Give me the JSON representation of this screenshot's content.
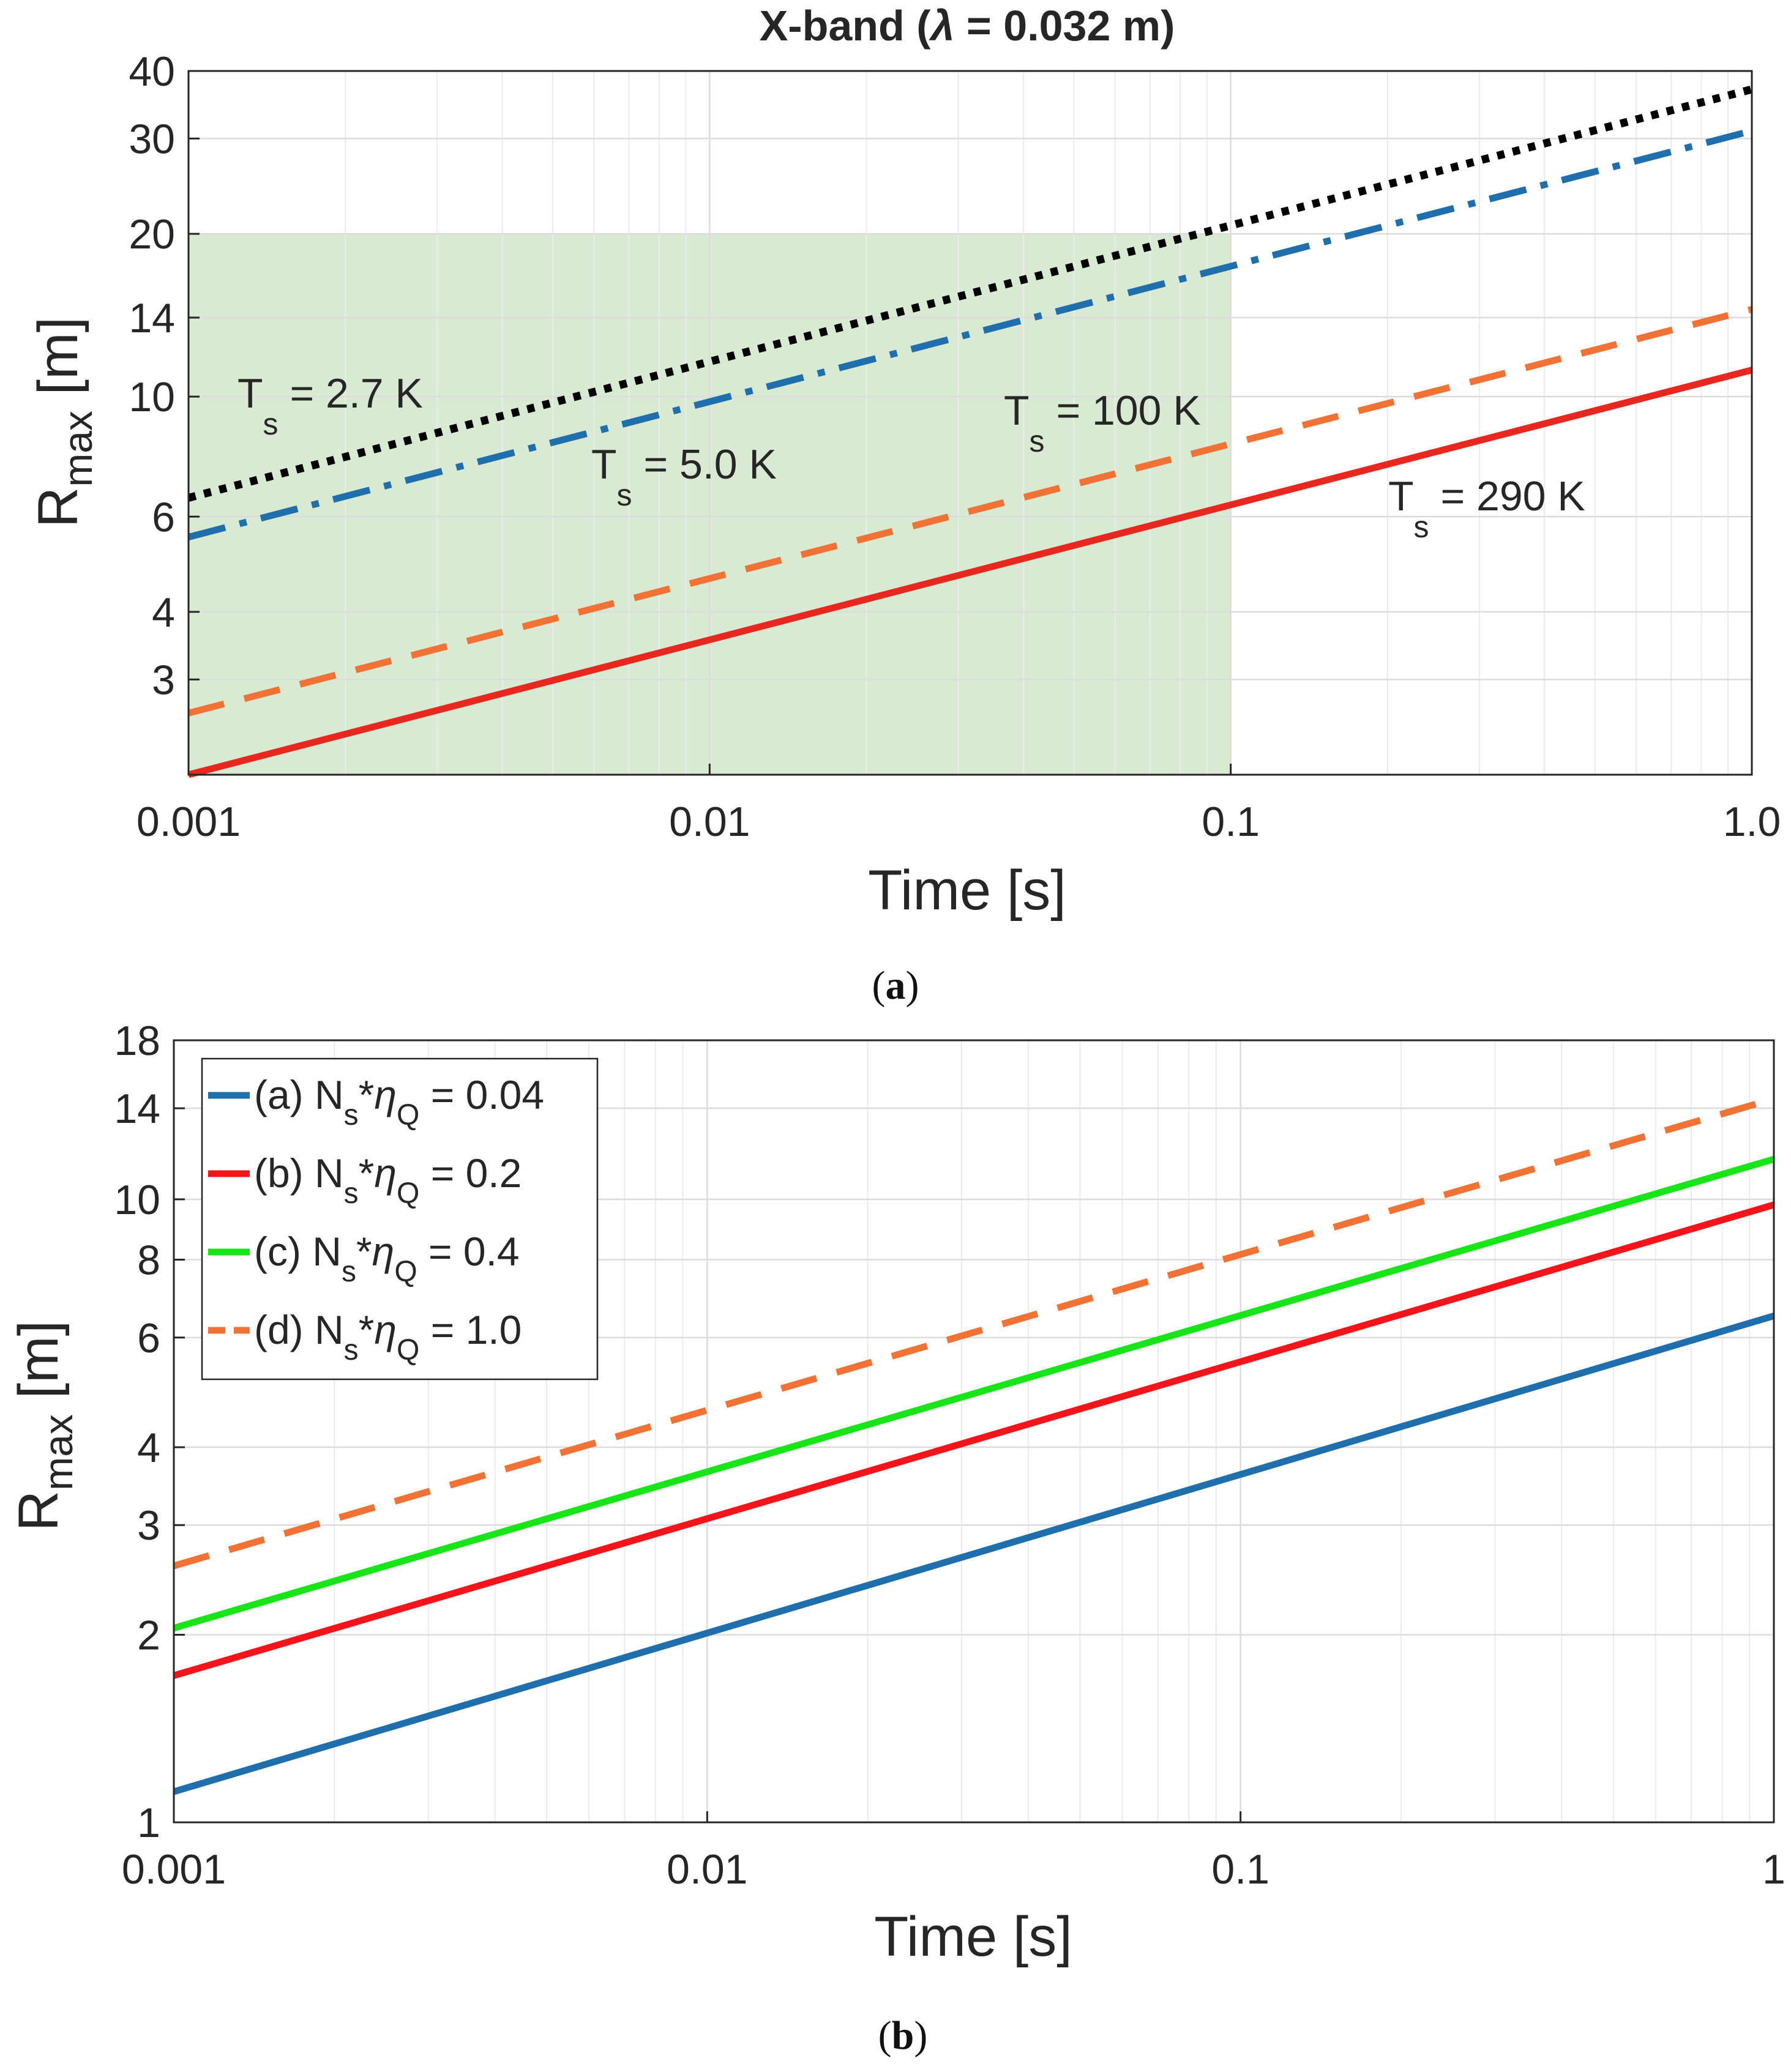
{
  "chart_data": [
    {
      "id": "a",
      "type": "line",
      "title": "X-band (λ = 0.032 m)",
      "title_prefix": "X-band (",
      "title_lambda": "λ",
      "title_suffix": " = 0.032 m)",
      "xlabel": "Time [s]",
      "ylabel_main": "R",
      "ylabel_sub": "max",
      "ylabel_unit": " [m]",
      "xscale": "log",
      "yscale": "log",
      "xlim": [
        0.001,
        1.0
      ],
      "ylim": [
        2.0,
        40
      ],
      "xticks": [
        0.001,
        0.01,
        0.1,
        1.0
      ],
      "xtick_labels": [
        "0.001",
        "0.01",
        "0.1",
        "1.0"
      ],
      "yticks": [
        3,
        4,
        6,
        10,
        14,
        20,
        30,
        40
      ],
      "ytick_labels": [
        "3",
        "4",
        "6",
        "10",
        "14",
        "20",
        "30",
        "40"
      ],
      "grid": true,
      "shaded_region": {
        "x": [
          0.001,
          0.1
        ],
        "y": [
          2.0,
          20
        ],
        "color": "#d9ead3"
      },
      "series": [
        {
          "name": "T_s = 2.7 K",
          "color": "#000000",
          "style": "dotted",
          "x": [
            0.001,
            1.0
          ],
          "values": [
            6.5,
            37
          ]
        },
        {
          "name": "T_s = 5.0 K",
          "color": "#1f6fad",
          "style": "dashdot",
          "x": [
            0.001,
            1.0
          ],
          "values": [
            5.5,
            31
          ]
        },
        {
          "name": "T_s = 100 K",
          "color": "#f07335",
          "style": "dashed",
          "x": [
            0.001,
            1.0
          ],
          "values": [
            2.6,
            14.5
          ]
        },
        {
          "name": "T_s = 290 K",
          "color": "#e8281f",
          "style": "solid",
          "x": [
            0.001,
            1.0
          ],
          "values": [
            2.0,
            11.2
          ]
        }
      ],
      "annotations": [
        {
          "main": "T",
          "sub": "s",
          "rest": " = 2.7 K"
        },
        {
          "main": "T",
          "sub": "s",
          "rest": " = 5.0 K"
        },
        {
          "main": "T",
          "sub": "s",
          "rest": " = 100 K"
        },
        {
          "main": "T",
          "sub": "s",
          "rest": " = 290 K"
        }
      ],
      "caption": "(a)",
      "caption_open": "(",
      "caption_letter": "a",
      "caption_close": ")"
    },
    {
      "id": "b",
      "type": "line",
      "title": "",
      "xlabel": "Time [s]",
      "ylabel_main": "R",
      "ylabel_sub": "max",
      "ylabel_unit": " [m]",
      "xscale": "log",
      "yscale": "log",
      "xlim": [
        0.001,
        1
      ],
      "ylim": [
        1,
        18
      ],
      "xticks": [
        0.001,
        0.01,
        0.1,
        1
      ],
      "xtick_labels": [
        "0.001",
        "0.01",
        "0.1",
        "1"
      ],
      "yticks": [
        1,
        2,
        3,
        4,
        6,
        8,
        10,
        14,
        18
      ],
      "ytick_labels": [
        "1",
        "2",
        "3",
        "4",
        "6",
        "8",
        "10",
        "14",
        "18"
      ],
      "grid": true,
      "legend_position": "top-left",
      "series": [
        {
          "name": "(a) N_s*η_Q = 0.04",
          "label_pre": "(a) N",
          "label_sub1": "s",
          "label_mid": "*",
          "label_eta": "η",
          "label_sub2": "Q",
          "label_val": " = 0.04",
          "color": "#1f6fad",
          "style": "solid",
          "x": [
            0.001,
            1
          ],
          "values": [
            1.12,
            6.5
          ]
        },
        {
          "name": "(b) N_s*η_Q = 0.2",
          "label_pre": "(b) N",
          "label_sub1": "s",
          "label_mid": "*",
          "label_eta": "η",
          "label_sub2": "Q",
          "label_val": " = 0.2",
          "color": "#f5141a",
          "style": "solid",
          "x": [
            0.001,
            1
          ],
          "values": [
            1.72,
            9.8
          ]
        },
        {
          "name": "(c) N_s*η_Q = 0.4",
          "label_pre": "(c) N",
          "label_sub1": "s",
          "label_mid": "*",
          "label_eta": "η",
          "label_sub2": "Q",
          "label_val": " = 0.4",
          "color": "#18e518",
          "style": "solid",
          "x": [
            0.001,
            1
          ],
          "values": [
            2.05,
            11.6
          ]
        },
        {
          "name": "(d) N_s*η_Q = 1.0",
          "label_pre": "(d) N",
          "label_sub1": "s",
          "label_mid": "*",
          "label_eta": "η",
          "label_sub2": "Q",
          "label_val": " = 1.0",
          "color": "#f07335",
          "style": "dashed",
          "x": [
            0.001,
            1
          ],
          "values": [
            2.58,
            14.5
          ]
        }
      ],
      "caption": "(b)",
      "caption_open": "(",
      "caption_letter": "b",
      "caption_close": ")"
    }
  ]
}
